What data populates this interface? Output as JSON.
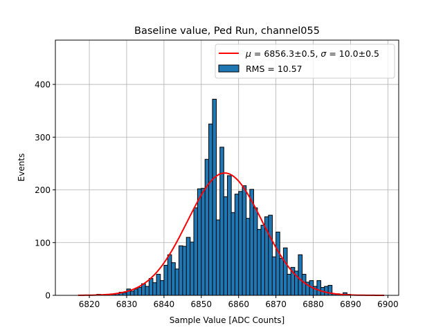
{
  "chart_data": {
    "type": "bar",
    "title": "Baseline value, Ped Run, channel055",
    "xlabel": "Sample Value [ADC Counts]",
    "ylabel": "Events",
    "xlim": [
      6810.9,
      6902.9
    ],
    "ylim": [
      0,
      484
    ],
    "xticks": [
      6820,
      6830,
      6840,
      6850,
      6860,
      6870,
      6880,
      6890,
      6900
    ],
    "yticks": [
      0,
      100,
      200,
      300,
      400
    ],
    "grid": true,
    "legend_position": "top-right",
    "bin_width": 1.04,
    "histogram": {
      "name": "RMS = 10.57",
      "color": "#1f77b4",
      "bin_starts": [
        6822,
        6826,
        6827,
        6828,
        6829,
        6830,
        6831,
        6832,
        6833,
        6834,
        6835,
        6836,
        6837,
        6838,
        6839,
        6840,
        6841,
        6842,
        6843,
        6844,
        6845,
        6846,
        6847,
        6848,
        6849,
        6850,
        6851,
        6852,
        6853,
        6854,
        6855,
        6856,
        6857,
        6858,
        6859,
        6860,
        6861,
        6862,
        6863,
        6864,
        6865,
        6866,
        6867,
        6868,
        6869,
        6870,
        6871,
        6872,
        6873,
        6874,
        6875,
        6876,
        6877,
        6878,
        6879,
        6880,
        6881,
        6882,
        6883,
        6884,
        6885,
        6886,
        6887,
        6888,
        6889
      ],
      "counts": [
        2,
        2,
        3,
        6,
        5,
        12,
        8,
        12,
        15,
        22,
        17,
        32,
        24,
        40,
        28,
        57,
        77,
        62,
        50,
        94,
        93,
        110,
        101,
        166,
        202,
        203,
        258,
        325,
        372,
        143,
        281,
        187,
        227,
        157,
        192,
        197,
        208,
        146,
        201,
        166,
        125,
        133,
        149,
        152,
        73,
        120,
        70,
        90,
        40,
        53,
        46,
        77,
        40,
        25,
        28,
        17,
        28,
        15,
        17,
        19,
        3,
        3,
        2,
        5,
        2
      ]
    },
    "fit": {
      "name": "μ = 6856.3±0.5, σ = 10.0±0.5",
      "label_mu": "μ",
      "label_rest1": " = 6856.3±0.5, ",
      "label_sigma": "σ",
      "label_rest2": " = 10.0±0.5",
      "type": "gaussian",
      "mu": 6856.3,
      "sigma": 10.0,
      "amplitude": 232,
      "x_range": [
        6817,
        6899
      ],
      "color": "#ff0000"
    }
  }
}
